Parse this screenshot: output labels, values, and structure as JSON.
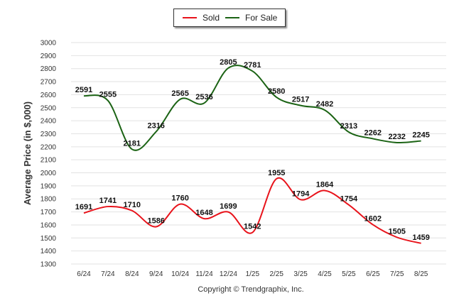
{
  "chart_data": {
    "type": "line",
    "categories": [
      "6/24",
      "7/24",
      "8/24",
      "9/24",
      "10/24",
      "11/24",
      "12/24",
      "1/25",
      "2/25",
      "3/25",
      "4/25",
      "5/25",
      "6/25",
      "7/25",
      "8/25"
    ],
    "series": [
      {
        "name": "Sold",
        "color": "#e8131b",
        "values": [
          1691,
          1741,
          1710,
          1586,
          1760,
          1648,
          1699,
          1542,
          1955,
          1794,
          1864,
          1754,
          1602,
          1505,
          1459
        ]
      },
      {
        "name": "For Sale",
        "color": "#1b6314",
        "values": [
          2591,
          2555,
          2181,
          2316,
          2565,
          2536,
          2805,
          2781,
          2580,
          2517,
          2482,
          2313,
          2262,
          2232,
          2245
        ]
      }
    ],
    "ylabel": "Average Price (in $,000)",
    "ylim": [
      1300,
      3000
    ],
    "yticks": [
      1300,
      1400,
      1500,
      1600,
      1700,
      1800,
      1900,
      2000,
      2100,
      2200,
      2300,
      2400,
      2500,
      2600,
      2700,
      2800,
      2900,
      3000
    ],
    "grid": true,
    "legend_position": "top-center"
  },
  "copyright": "Copyright © Trendgraphix, Inc."
}
